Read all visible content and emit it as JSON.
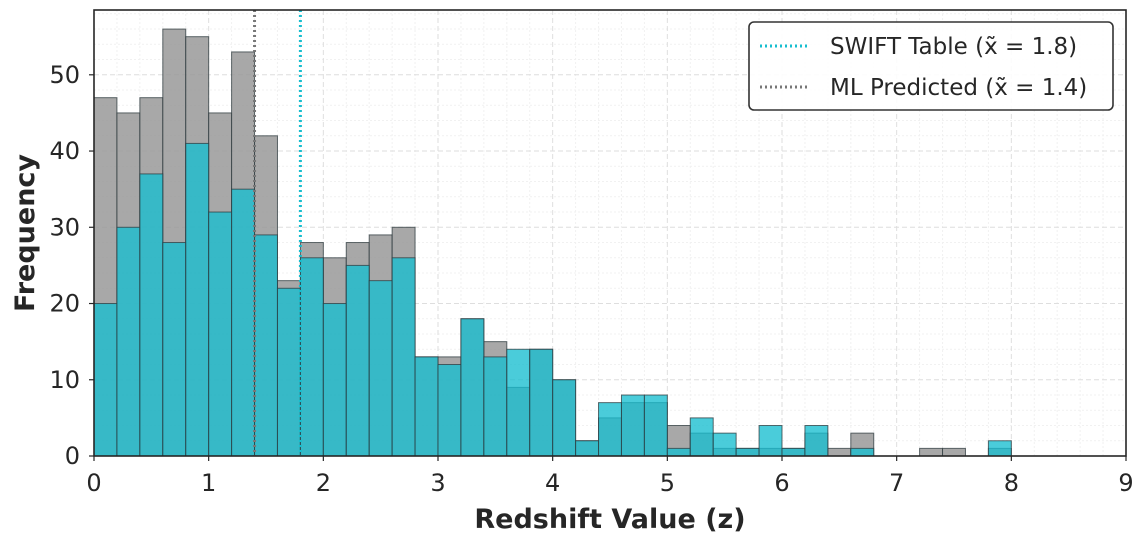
{
  "chart_data": {
    "type": "bar",
    "xlabel": "Redshift Value (z)",
    "ylabel": "Frequency",
    "xlim": [
      0,
      9
    ],
    "ylim": [
      0,
      58.5
    ],
    "xticks": [
      "0",
      "1",
      "2",
      "3",
      "4",
      "5",
      "6",
      "7",
      "8",
      "9"
    ],
    "yticks": [
      "0",
      "10",
      "20",
      "30",
      "40",
      "50"
    ],
    "grid": true,
    "legend_position": "top-right",
    "bin_width": 0.2,
    "bin_starts": [
      0.0,
      0.2,
      0.4,
      0.6,
      0.8,
      1.0,
      1.2,
      1.4,
      1.6,
      1.8,
      2.0,
      2.2,
      2.4,
      2.6,
      2.8,
      3.0,
      3.2,
      3.4,
      3.6,
      3.8,
      4.0,
      4.2,
      4.4,
      4.6,
      4.8,
      5.0,
      5.2,
      5.4,
      5.6,
      5.8,
      6.0,
      6.2,
      6.4,
      6.6,
      6.8,
      7.0,
      7.2,
      7.4,
      7.6,
      7.8,
      8.0
    ],
    "series": [
      {
        "name": "ML Predicted",
        "color": "#999999",
        "values": [
          47,
          45,
          47,
          56,
          55,
          45,
          53,
          42,
          23,
          28,
          26,
          28,
          29,
          30,
          13,
          13,
          18,
          15,
          9,
          14,
          10,
          2,
          5,
          7,
          7,
          4,
          3,
          1,
          1,
          1,
          1,
          3,
          1,
          3,
          0,
          0,
          1,
          1,
          0,
          1,
          0
        ]
      },
      {
        "name": "SWIFT Table",
        "color": "#17BECF",
        "values": [
          20,
          30,
          37,
          28,
          41,
          32,
          35,
          29,
          22,
          26,
          20,
          25,
          23,
          26,
          13,
          12,
          18,
          13,
          14,
          14,
          10,
          2,
          7,
          8,
          8,
          1,
          5,
          3,
          1,
          4,
          1,
          4,
          0,
          1,
          0,
          0,
          0,
          0,
          0,
          2,
          0
        ]
      }
    ],
    "median_lines": [
      {
        "label": "SWIFT Table",
        "value": 1.8,
        "color": "#17BECF"
      },
      {
        "label": "ML Predicted",
        "value": 1.4,
        "color": "#777777"
      }
    ],
    "legend": [
      {
        "text": "SWIFT Table (x̃ = 1.8)",
        "color": "#17BECF"
      },
      {
        "text": "ML Predicted (x̃ = 1.4)",
        "color": "#777777"
      }
    ]
  }
}
